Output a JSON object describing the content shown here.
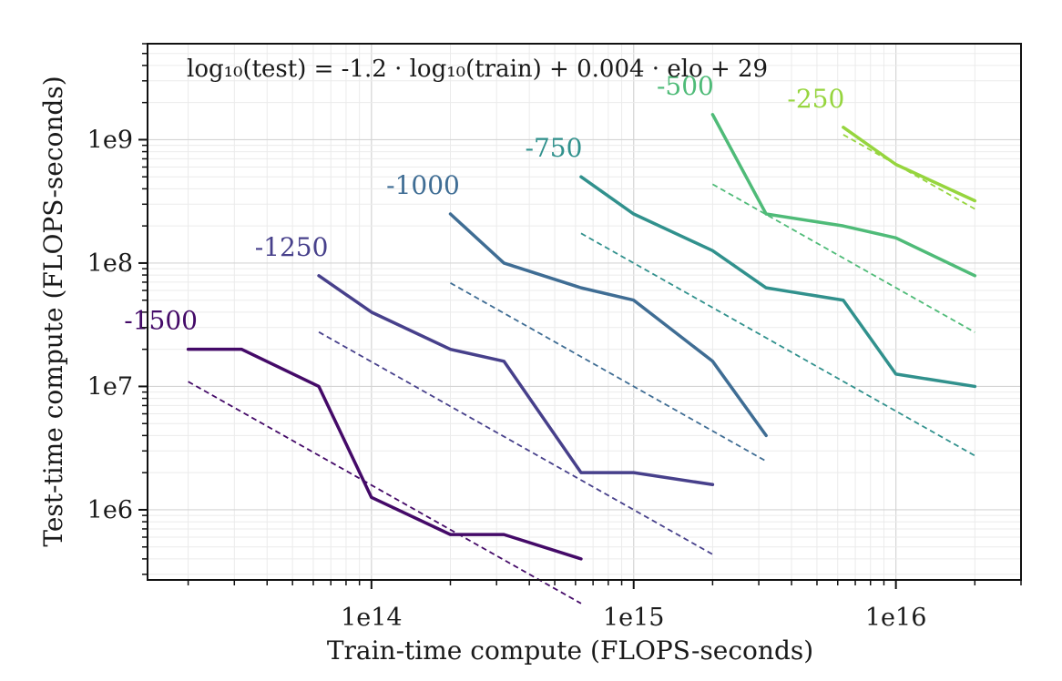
{
  "chart_data": {
    "type": "line",
    "title": "",
    "xlabel": "Train-time compute (FLOPS-seconds)",
    "ylabel": "Test-time compute (FLOPS-seconds)",
    "xscale": "log",
    "yscale": "log",
    "xlim": [
      14000000000000.0,
      3e+16
    ],
    "ylim": [
      270000.0,
      6000000000.0
    ],
    "x_ticks": [
      {
        "value": 100000000000000.0,
        "label": "1e14"
      },
      {
        "value": 1000000000000000.0,
        "label": "1e15"
      },
      {
        "value": 1e+16,
        "label": "1e16"
      }
    ],
    "y_ticks": [
      {
        "value": 1000000.0,
        "label": "1e6"
      },
      {
        "value": 10000000.0,
        "label": "1e7"
      },
      {
        "value": 100000000.0,
        "label": "1e8"
      },
      {
        "value": 1000000000.0,
        "label": "1e9"
      }
    ],
    "grid": true,
    "annotation": "log₁₀(test) = -1.2 · log₁₀(train) + 0.004 · elo + 29",
    "fit": {
      "slope": -1.2,
      "elo_coef": 0.004,
      "intercept": 29
    },
    "series": [
      {
        "name": "-1500",
        "elo": -1500,
        "color": "#440a68",
        "x": [
          20000000000000.0,
          32000000000000.0,
          63000000000000.0,
          100000000000000.0,
          200000000000000.0,
          320000000000000.0,
          630000000000000.0
        ],
        "y": [
          20000000.0,
          20000000.0,
          10000000.0,
          1260000.0,
          630000.0,
          630000.0,
          400000.0
        ],
        "fit_x": [
          20000000000000.0,
          630000000000000.0
        ]
      },
      {
        "name": "-1250",
        "elo": -1250,
        "color": "#47408b",
        "x": [
          63000000000000.0,
          100000000000000.0,
          200000000000000.0,
          320000000000000.0,
          630000000000000.0,
          1000000000000000.0,
          2000000000000000.0
        ],
        "y": [
          79000000.0,
          40000000.0,
          20000000.0,
          16000000.0,
          2000000.0,
          2000000.0,
          1600000.0
        ],
        "fit_x": [
          63000000000000.0,
          2000000000000000.0
        ]
      },
      {
        "name": "-1000",
        "elo": -1000,
        "color": "#3f6d94",
        "x": [
          200000000000000.0,
          320000000000000.0,
          630000000000000.0,
          1000000000000000.0,
          2000000000000000.0,
          3200000000000000.0
        ],
        "y": [
          250000000.0,
          100000000.0,
          63000000.0,
          50000000.0,
          16000000.0,
          4000000.0
        ],
        "fit_x": [
          200000000000000.0,
          3200000000000000.0
        ]
      },
      {
        "name": "-750",
        "elo": -750,
        "color": "#31918d",
        "x": [
          630000000000000.0,
          1000000000000000.0,
          2000000000000000.0,
          3200000000000000.0,
          6300000000000000.0,
          1e+16,
          2e+16
        ],
        "y": [
          500000000.0,
          250000000.0,
          126000000.0,
          63000000.0,
          50000000.0,
          12600000.0,
          10000000.0
        ],
        "fit_x": [
          630000000000000.0,
          2e+16
        ]
      },
      {
        "name": "-500",
        "elo": -500,
        "color": "#4fbb78",
        "x": [
          2000000000000000.0,
          3200000000000000.0,
          6300000000000000.0,
          1e+16,
          2e+16
        ],
        "y": [
          1600000000.0,
          250000000.0,
          200000000.0,
          160000000.0,
          79000000.0
        ],
        "fit_x": [
          2000000000000000.0,
          2e+16
        ]
      },
      {
        "name": "-250",
        "elo": -250,
        "color": "#96d53e",
        "x": [
          6300000000000000.0,
          1e+16,
          2e+16
        ],
        "y": [
          1260000000.0,
          630000000.0,
          320000000.0
        ],
        "fit_x": [
          6300000000000000.0,
          2e+16
        ]
      }
    ]
  }
}
